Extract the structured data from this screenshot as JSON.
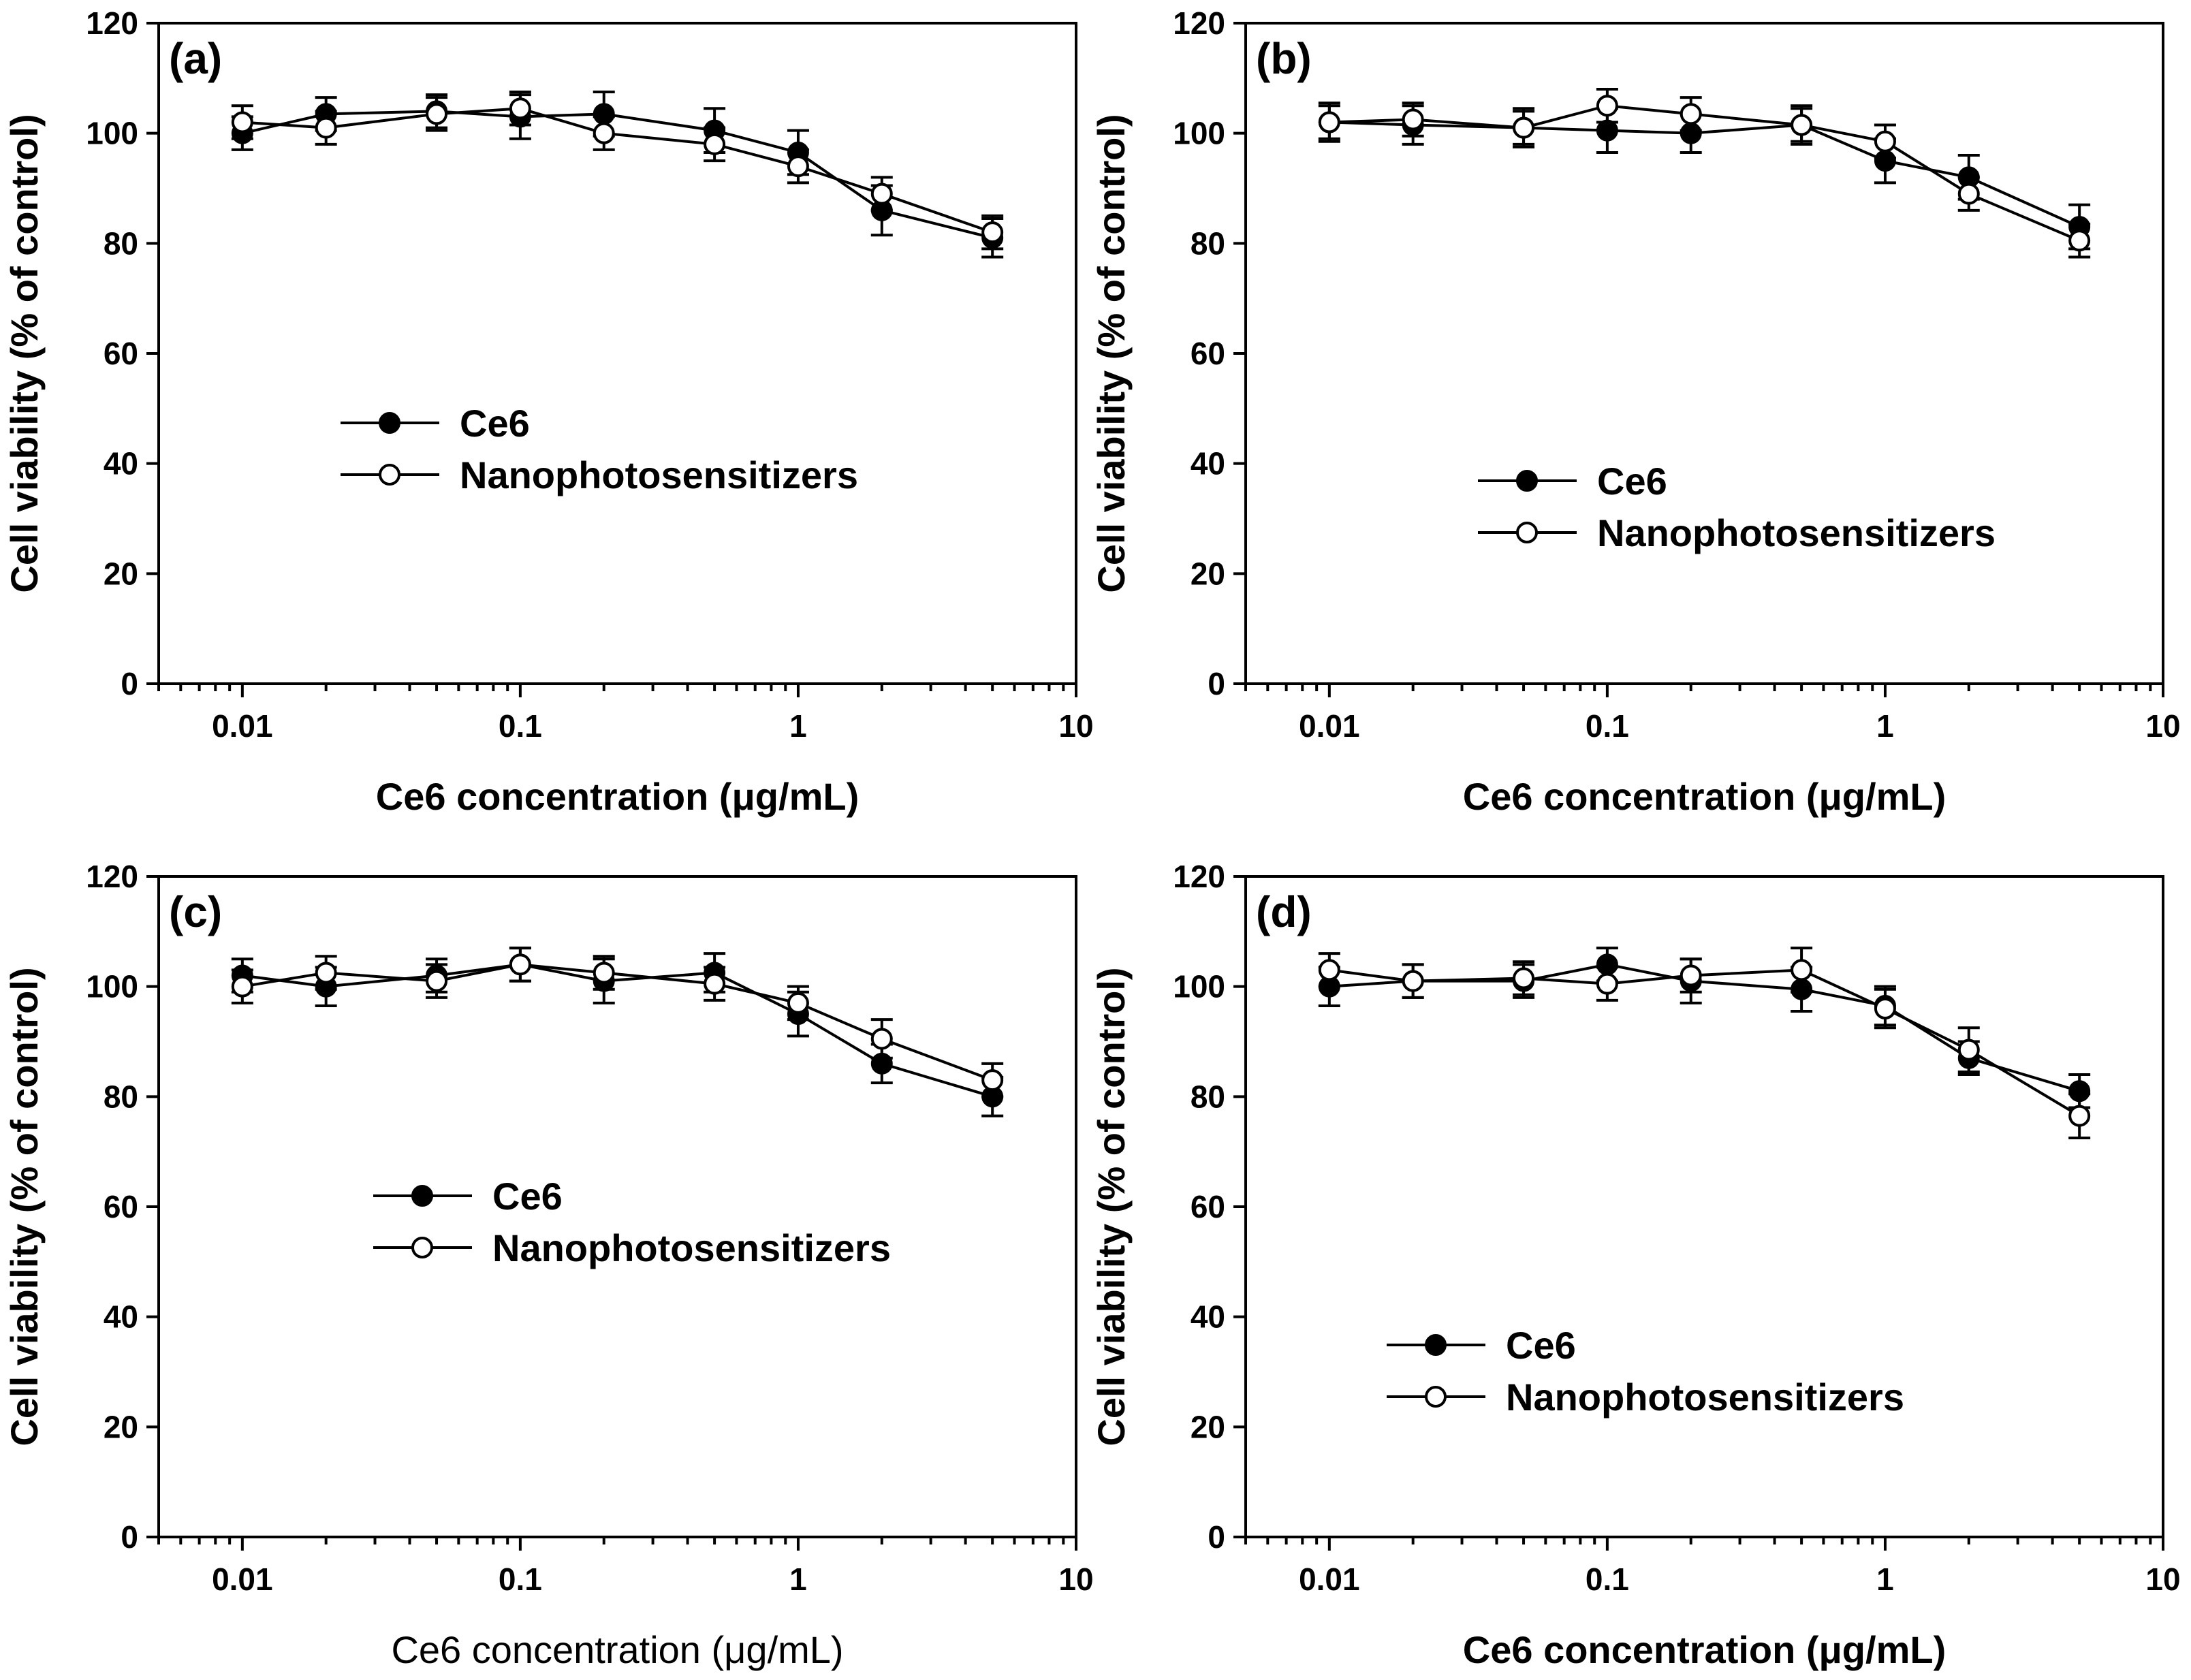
{
  "chart_data": [
    {
      "type": "line",
      "panel_label": "(a)",
      "xscale": "log",
      "xlim": [
        0.005,
        10
      ],
      "ylim": [
        0,
        120
      ],
      "xticks": [
        "0.01",
        "0.1",
        "1",
        "10"
      ],
      "yticks": [
        "0",
        "20",
        "40",
        "60",
        "80",
        "100",
        "120"
      ],
      "xlabel": "Ce6 concentration (μg/mL)",
      "ylabel": "Cell viability (% of control)",
      "legend_position": "center-left",
      "x": [
        0.01,
        0.02,
        0.05,
        0.1,
        0.2,
        0.5,
        1,
        2,
        5
      ],
      "series": [
        {
          "name": "Ce6",
          "marker": "filled-circle",
          "values": [
            100,
            103.5,
            104,
            103,
            103.5,
            100.5,
            96.5,
            86,
            81
          ],
          "errors": [
            3,
            3,
            3,
            4,
            4,
            4,
            4,
            4.5,
            3.5
          ]
        },
        {
          "name": "Nanophotosensitizers",
          "marker": "open-circle",
          "values": [
            102,
            101,
            103.5,
            104.5,
            100,
            98,
            94,
            89,
            82
          ],
          "errors": [
            3,
            3,
            3,
            3,
            3,
            3,
            3,
            3,
            3
          ]
        }
      ]
    },
    {
      "type": "line",
      "panel_label": "(b)",
      "xscale": "log",
      "xlim": [
        0.005,
        10
      ],
      "ylim": [
        0,
        120
      ],
      "xticks": [
        "0.01",
        "0.1",
        "1",
        "10"
      ],
      "yticks": [
        "0",
        "20",
        "40",
        "60",
        "80",
        "100",
        "120"
      ],
      "xlabel": "Ce6 concentration (μg/mL)",
      "ylabel": "Cell viability (% of control)",
      "legend_position": "center",
      "x": [
        0.01,
        0.02,
        0.05,
        0.1,
        0.2,
        0.5,
        1,
        2,
        5
      ],
      "series": [
        {
          "name": "Ce6",
          "marker": "filled-circle",
          "values": [
            102,
            101.5,
            101,
            100.5,
            100,
            101.5,
            95,
            92,
            83
          ],
          "errors": [
            3.5,
            3.5,
            3.5,
            4,
            3.5,
            3.5,
            4,
            4,
            4
          ]
        },
        {
          "name": "Nanophotosensitizers",
          "marker": "open-circle",
          "values": [
            102,
            102.5,
            101,
            105,
            103.5,
            101.5,
            98.5,
            89,
            80.5
          ],
          "errors": [
            3,
            3,
            3,
            3,
            3,
            3,
            3,
            3,
            3
          ]
        }
      ]
    },
    {
      "type": "line",
      "panel_label": "(c)",
      "xscale": "log",
      "xlim": [
        0.005,
        10
      ],
      "ylim": [
        0,
        120
      ],
      "xticks": [
        "0.01",
        "0.1",
        "1",
        "10"
      ],
      "yticks": [
        "0",
        "20",
        "40",
        "60",
        "80",
        "100",
        "120"
      ],
      "xlabel": "Ce6 concentration (μg/mL)",
      "xlabel_weight": "normal",
      "ylabel": "Cell viability (% of control)",
      "legend_position": "center",
      "x": [
        0.01,
        0.02,
        0.05,
        0.1,
        0.2,
        0.5,
        1,
        2,
        5
      ],
      "series": [
        {
          "name": "Ce6",
          "marker": "filled-circle",
          "values": [
            102,
            100,
            102,
            104,
            101,
            102.5,
            95,
            86,
            80
          ],
          "errors": [
            3,
            3.5,
            3,
            3,
            4,
            3.5,
            4,
            3.5,
            3.5
          ]
        },
        {
          "name": "Nanophotosensitizers",
          "marker": "open-circle",
          "values": [
            100,
            102.5,
            101,
            104,
            102.5,
            100.5,
            97,
            90.5,
            83
          ],
          "errors": [
            3,
            3,
            3,
            3,
            3,
            3,
            3,
            3.5,
            3
          ]
        }
      ]
    },
    {
      "type": "line",
      "panel_label": "(d)",
      "xscale": "log",
      "xlim": [
        0.005,
        10
      ],
      "ylim": [
        0,
        120
      ],
      "xticks": [
        "0.01",
        "0.1",
        "1",
        "10"
      ],
      "yticks": [
        "0",
        "20",
        "40",
        "60",
        "80",
        "100",
        "120"
      ],
      "xlabel": "Ce6 concentration (μg/mL)",
      "ylabel": "Cell viability (% of control)",
      "legend_position": "lower-left",
      "x": [
        0.01,
        0.02,
        0.05,
        0.1,
        0.2,
        0.5,
        1,
        2,
        5
      ],
      "series": [
        {
          "name": "Ce6",
          "marker": "filled-circle",
          "values": [
            100,
            101,
            101,
            104,
            101,
            99.5,
            96.5,
            87,
            81
          ],
          "errors": [
            3.5,
            3,
            3,
            3,
            4,
            4,
            3.5,
            3,
            3
          ]
        },
        {
          "name": "Nanophotosensitizers",
          "marker": "open-circle",
          "values": [
            103,
            101,
            101.5,
            100.5,
            102,
            103,
            96,
            88.5,
            76.5
          ],
          "errors": [
            3,
            3,
            3,
            3,
            3,
            4,
            3.5,
            4,
            4
          ]
        }
      ]
    }
  ]
}
